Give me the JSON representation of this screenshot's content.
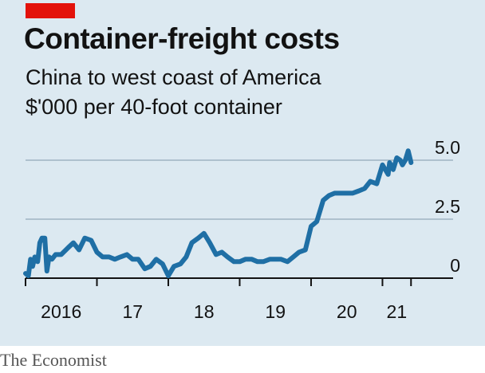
{
  "title": "Container-freight costs",
  "subtitle": "China to west coast of America",
  "unit_label": "$'000 per 40-foot container",
  "source": "The Economist",
  "colors": {
    "accent": "#e3120b",
    "line": "#1f6fa5",
    "background": "#dce9f1",
    "grid": "#9fb4c2",
    "axis": "#121212"
  },
  "chart_data": {
    "type": "line",
    "title": "Container-freight costs",
    "subtitle": "China to west coast of America",
    "ylabel": "$'000 per 40-foot container",
    "xlabel": "",
    "ylim": [
      0,
      5.0
    ],
    "yticks": [
      {
        "value": 0,
        "label": "0"
      },
      {
        "value": 2.5,
        "label": "2.5"
      },
      {
        "value": 5.0,
        "label": "5.0"
      }
    ],
    "xlim": [
      2016,
      2021.9
    ],
    "xticks": [
      2016,
      2017,
      2018,
      2019,
      2020,
      2021,
      2021.4
    ],
    "xtick_labels": [
      {
        "value": 2016.5,
        "label": "2016"
      },
      {
        "value": 2017.5,
        "label": "17"
      },
      {
        "value": 2018.5,
        "label": "18"
      },
      {
        "value": 2019.5,
        "label": "19"
      },
      {
        "value": 2020.5,
        "label": "20"
      },
      {
        "value": 2021.2,
        "label": "21"
      }
    ],
    "grid": true,
    "series": [
      {
        "name": "",
        "x": [
          2016.0,
          2016.04,
          2016.07,
          2016.1,
          2016.13,
          2016.17,
          2016.2,
          2016.23,
          2016.27,
          2016.3,
          2016.33,
          2016.37,
          2016.42,
          2016.5,
          2016.6,
          2016.67,
          2016.75,
          2016.83,
          2016.92,
          2017.0,
          2017.08,
          2017.17,
          2017.25,
          2017.33,
          2017.42,
          2017.5,
          2017.58,
          2017.67,
          2017.75,
          2017.83,
          2017.92,
          2018.0,
          2018.08,
          2018.17,
          2018.25,
          2018.33,
          2018.42,
          2018.5,
          2018.58,
          2018.67,
          2018.75,
          2018.83,
          2018.92,
          2019.0,
          2019.08,
          2019.17,
          2019.25,
          2019.33,
          2019.42,
          2019.5,
          2019.58,
          2019.67,
          2019.75,
          2019.83,
          2019.92,
          2020.0,
          2020.08,
          2020.17,
          2020.25,
          2020.33,
          2020.42,
          2020.5,
          2020.58,
          2020.67,
          2020.75,
          2020.83,
          2020.92,
          2021.0,
          2021.08,
          2021.1,
          2021.15,
          2021.2,
          2021.25,
          2021.28,
          2021.32,
          2021.36,
          2021.4
        ],
        "y": [
          0.2,
          0.1,
          0.8,
          0.5,
          0.9,
          0.7,
          1.5,
          1.7,
          1.7,
          0.3,
          0.9,
          0.8,
          1.0,
          1.0,
          1.3,
          1.5,
          1.2,
          1.7,
          1.6,
          1.1,
          0.9,
          0.9,
          0.8,
          0.9,
          1.0,
          0.8,
          0.8,
          0.4,
          0.5,
          0.8,
          0.6,
          0.1,
          0.5,
          0.6,
          0.9,
          1.5,
          1.7,
          1.9,
          1.5,
          1.0,
          1.1,
          0.9,
          0.7,
          0.7,
          0.8,
          0.8,
          0.7,
          0.7,
          0.8,
          0.8,
          0.8,
          0.7,
          0.9,
          1.1,
          1.2,
          2.2,
          2.4,
          3.3,
          3.5,
          3.6,
          3.6,
          3.6,
          3.6,
          3.7,
          3.8,
          4.1,
          4.0,
          4.8,
          4.4,
          4.9,
          4.6,
          5.1,
          5.0,
          4.8,
          5.0,
          5.4,
          4.9
        ]
      }
    ]
  }
}
